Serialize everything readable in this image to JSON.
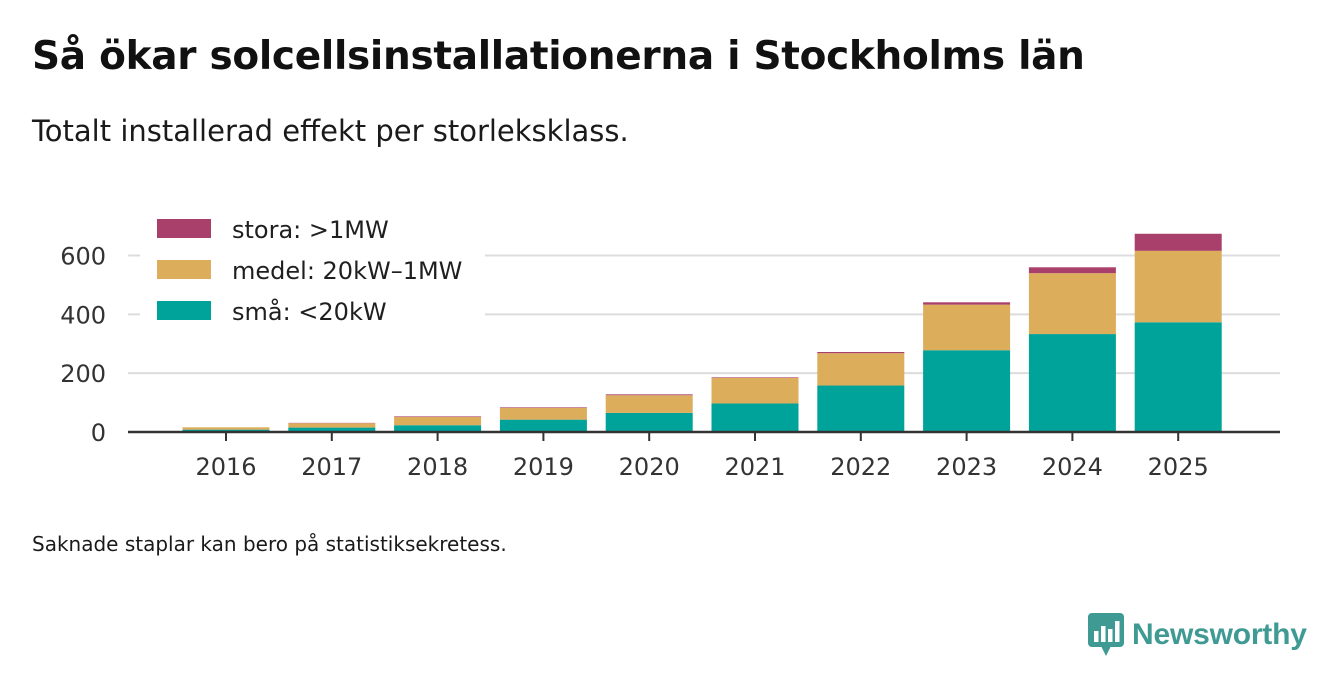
{
  "header": {
    "title": "Så ökar solcellsinstallationerna i Stockholms län",
    "subtitle": "Totalt installerad effekt per storleksklass."
  },
  "footer": {
    "note": "Saknade staplar kan bero på statistiksekretess.",
    "brand": "Newsworthy"
  },
  "colors": {
    "sma": "#00a39a",
    "medel": "#dcad5a",
    "stora": "#a8406b",
    "grid": "#dcdcdc",
    "axis": "#333333",
    "brand": "#3f9a93"
  },
  "chart_data": {
    "type": "bar",
    "stacked": true,
    "categories": [
      "2016",
      "2017",
      "2018",
      "2019",
      "2020",
      "2021",
      "2022",
      "2023",
      "2024",
      "2025"
    ],
    "series": [
      {
        "key": "sma",
        "name": "små: <20kW",
        "values": [
          8,
          15,
          23,
          42,
          65,
          97,
          158,
          278,
          333,
          373
        ]
      },
      {
        "key": "medel",
        "name": "medel: 20kW–1MW",
        "values": [
          8,
          15,
          28,
          40,
          60,
          87,
          110,
          155,
          207,
          243
        ]
      },
      {
        "key": "stora",
        "name": "stora: >1MW",
        "values": [
          0,
          1,
          2,
          2,
          3,
          2,
          4,
          8,
          20,
          58
        ]
      }
    ],
    "legend_order": [
      "stora",
      "medel",
      "sma"
    ],
    "yticks": [
      0,
      200,
      400,
      600
    ],
    "ylim": [
      0,
      680
    ],
    "xlabel": "",
    "ylabel": "",
    "grid": true,
    "legend_position": "top-left"
  }
}
